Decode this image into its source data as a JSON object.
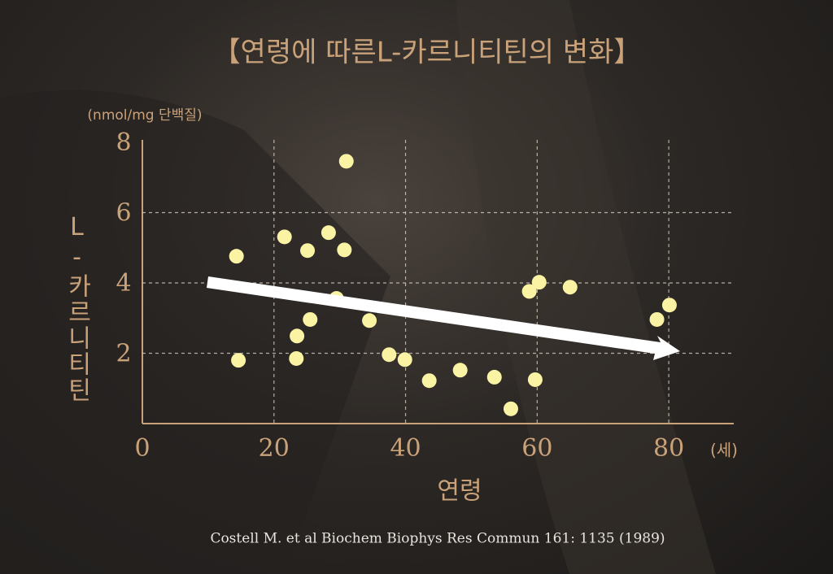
{
  "chart_data": {
    "type": "scatter",
    "title": "【연령에 따른L-카르니티틴의 변화】",
    "y_unit": "(nmol/mg 단백질)",
    "y_label": "L-카르니티틴",
    "x_label": "연령",
    "x_unit": "(세)",
    "source": "Costell M. et al Biochem Biophys Res Commun 161: 1135 (1989)",
    "color": "#fbf3a4",
    "grid": true,
    "xlim": [
      0,
      90
    ],
    "ylim": [
      0,
      8
    ],
    "xticks": [
      0,
      20,
      40,
      60,
      80
    ],
    "yticks": [
      2,
      4,
      6,
      8
    ],
    "x": [
      14.3,
      14.6,
      21.6,
      25.1,
      28.3,
      30.7,
      31.0,
      29.5,
      25.5,
      23.5,
      23.4,
      34.5,
      37.5,
      39.9,
      43.6,
      48.3,
      53.5,
      56.0,
      59.7,
      58.8,
      60.3,
      65.0,
      78.2,
      80.1
    ],
    "values": [
      4.76,
      1.8,
      5.31,
      4.92,
      5.43,
      4.94,
      7.46,
      3.56,
      2.96,
      2.49,
      1.85,
      2.93,
      1.96,
      1.82,
      1.22,
      1.52,
      1.32,
      0.42,
      1.25,
      3.76,
      4.02,
      3.88,
      2.96,
      3.37
    ]
  }
}
